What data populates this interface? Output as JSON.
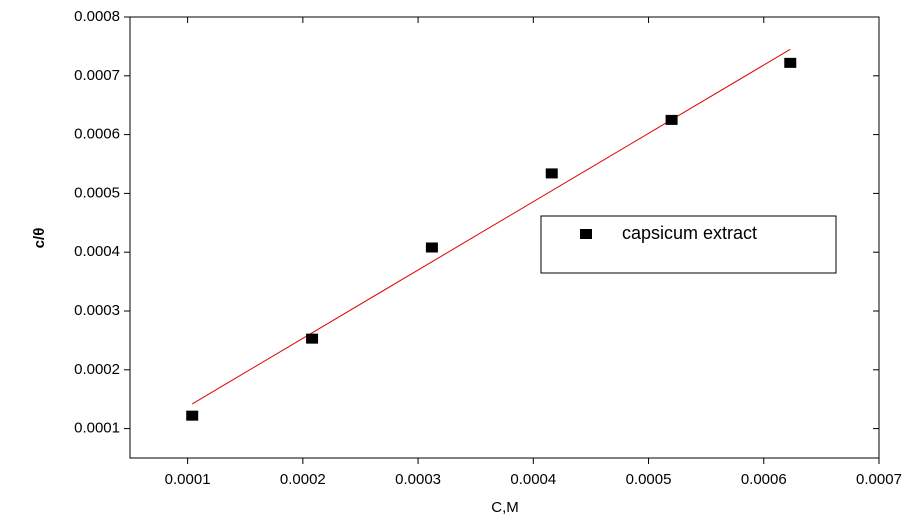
{
  "chart_data": {
    "type": "scatter",
    "x_label": "C,M",
    "y_label": "c/θ",
    "series": [
      {
        "name": "capsicum extract",
        "color": "#000000",
        "x": [
          0.000104,
          0.000208,
          0.000312,
          0.000416,
          0.00052,
          0.000623
        ],
        "values": [
          0.000122,
          0.000253,
          0.000408,
          0.000534,
          0.000625,
          0.000722
        ]
      }
    ],
    "fit_line": {
      "color": "#e00000",
      "x": [
        0.000104,
        0.000623
      ],
      "values": [
        0.000142,
        0.000745
      ]
    },
    "xlim": [
      5e-05,
      0.0007
    ],
    "xticks": [
      0.0001,
      0.0002,
      0.0003,
      0.0004,
      0.0005,
      0.0006,
      0.0007
    ],
    "ylim": [
      5e-05,
      0.0008
    ],
    "yticks": [
      0.0001,
      0.0002,
      0.0003,
      0.0004,
      0.0005,
      0.0006,
      0.0007,
      0.0008
    ],
    "legend": "right"
  }
}
